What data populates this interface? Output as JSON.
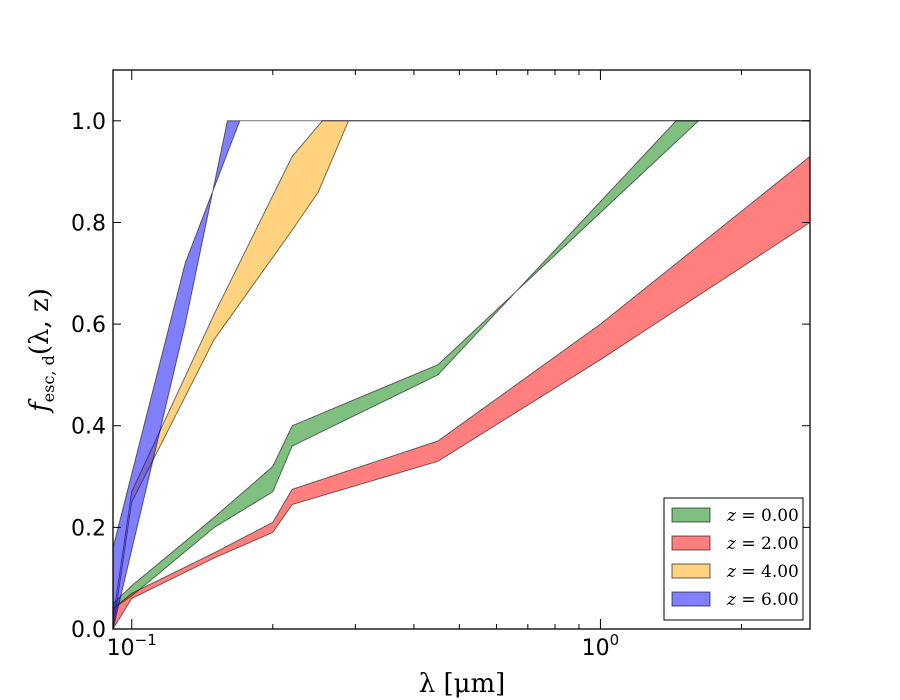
{
  "chart_data": {
    "type": "area",
    "title": "",
    "xlabel": "λ [μm]",
    "ylabel": "f_esc,d(λ, z)",
    "ylabel_parts": {
      "base": "f",
      "sub": "esc, d",
      "args": "(λ, z)"
    },
    "xscale": "log",
    "xlim": [
      0.0912,
      2.8
    ],
    "ylim": [
      0.0,
      1.1
    ],
    "xticks": [
      {
        "value": 0.1,
        "base": "10",
        "exp": "−1"
      },
      {
        "value": 1.0,
        "base": "10",
        "exp": "0"
      }
    ],
    "yticks": [
      {
        "value": 0.0,
        "label": "0.0"
      },
      {
        "value": 0.2,
        "label": "0.2"
      },
      {
        "value": 0.4,
        "label": "0.4"
      },
      {
        "value": 0.6,
        "label": "0.6"
      },
      {
        "value": 0.8,
        "label": "0.8"
      },
      {
        "value": 1.0,
        "label": "1.0"
      }
    ],
    "legend_position": "lower-right",
    "series": [
      {
        "name": "z = 0.00",
        "label_var": "z",
        "label_value": "= 0.00",
        "color": "#008000",
        "lower": [
          [
            0.0912,
            0.04
          ],
          [
            0.1,
            0.065
          ],
          [
            0.15,
            0.2
          ],
          [
            0.2,
            0.27
          ],
          [
            0.22,
            0.36
          ],
          [
            0.45,
            0.5
          ],
          [
            1.45,
            1.0
          ],
          [
            2.8,
            1.0
          ]
        ],
        "upper": [
          [
            0.0912,
            0.05
          ],
          [
            0.1,
            0.085
          ],
          [
            0.15,
            0.22
          ],
          [
            0.2,
            0.32
          ],
          [
            0.22,
            0.4
          ],
          [
            0.45,
            0.52
          ],
          [
            1.62,
            1.0
          ],
          [
            2.8,
            1.0
          ]
        ]
      },
      {
        "name": "z = 2.00",
        "label_var": "z",
        "label_value": "= 2.00",
        "color": "#ff0000",
        "lower": [
          [
            0.0912,
            0.0
          ],
          [
            0.1,
            0.06
          ],
          [
            0.15,
            0.14
          ],
          [
            0.2,
            0.19
          ],
          [
            0.22,
            0.245
          ],
          [
            0.45,
            0.33
          ],
          [
            1.0,
            0.53
          ],
          [
            2.8,
            0.8
          ]
        ],
        "upper": [
          [
            0.0912,
            0.04
          ],
          [
            0.1,
            0.07
          ],
          [
            0.15,
            0.15
          ],
          [
            0.2,
            0.21
          ],
          [
            0.22,
            0.275
          ],
          [
            0.45,
            0.37
          ],
          [
            1.0,
            0.6
          ],
          [
            2.8,
            0.93
          ]
        ]
      },
      {
        "name": "z = 4.00",
        "label_var": "z",
        "label_value": "= 4.00",
        "color": "#ffa500",
        "lower": [
          [
            0.0912,
            0.0
          ],
          [
            0.1,
            0.25
          ],
          [
            0.15,
            0.57
          ],
          [
            0.22,
            0.785
          ],
          [
            0.25,
            0.86
          ],
          [
            0.29,
            1.0
          ],
          [
            2.8,
            1.0
          ]
        ],
        "upper": [
          [
            0.0912,
            0.02
          ],
          [
            0.1,
            0.27
          ],
          [
            0.15,
            0.62
          ],
          [
            0.22,
            0.93
          ],
          [
            0.255,
            1.0
          ],
          [
            2.8,
            1.0
          ]
        ]
      },
      {
        "name": "z = 6.00",
        "label_var": "z",
        "label_value": "= 6.00",
        "color": "#0000ff",
        "lower": [
          [
            0.0912,
            0.0
          ],
          [
            0.13,
            0.6
          ],
          [
            0.16,
            1.0
          ],
          [
            2.8,
            1.0
          ]
        ],
        "upper": [
          [
            0.0912,
            0.16
          ],
          [
            0.13,
            0.72
          ],
          [
            0.17,
            1.0
          ],
          [
            2.8,
            1.0
          ]
        ]
      }
    ]
  }
}
